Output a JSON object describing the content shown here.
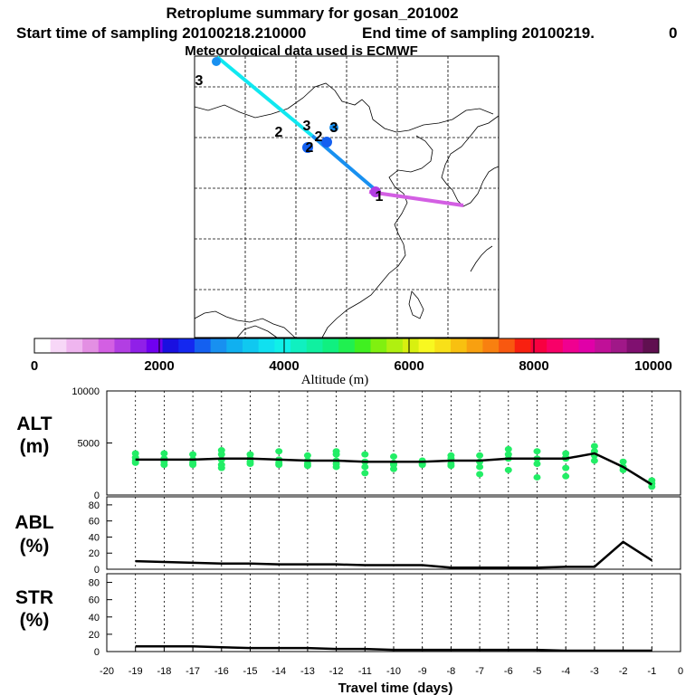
{
  "header": {
    "title": "Retroplume summary for gosan_201002",
    "start": "Start time of sampling 20100218.210000",
    "end": "End time of sampling 20100219.",
    "end_suffix": "0",
    "met": "Meteorological data used is ECMWF"
  },
  "colorbar": {
    "title": "Altitude (m)",
    "ticks": [
      "0",
      "2000",
      "4000",
      "6000",
      "8000",
      "10000"
    ],
    "colors": [
      "#ffffff",
      "#f7d7f7",
      "#efb5ef",
      "#e38fe3",
      "#d35fe3",
      "#b23ee3",
      "#9020e8",
      "#7000f0",
      "#1a10e0",
      "#1428f0",
      "#1460f0",
      "#1890f0",
      "#10b0f0",
      "#10c8f0",
      "#10e0f0",
      "#10f0e8",
      "#10f0c0",
      "#10f0a0",
      "#10f080",
      "#20f050",
      "#40f020",
      "#80f010",
      "#b0f010",
      "#d8f010",
      "#f8f820",
      "#f8e018",
      "#f8c010",
      "#f8a010",
      "#f88010",
      "#f85810",
      "#f82010",
      "#f80040",
      "#f80068",
      "#f00090",
      "#e000a8",
      "#c01098",
      "#a01888",
      "#801070",
      "#601050"
    ]
  },
  "map": {
    "markers": [
      "1",
      "2",
      "2",
      "2",
      "3",
      "3",
      "3"
    ]
  },
  "chart_data": [
    {
      "type": "line",
      "panel": "ALT",
      "label_top": "ALT",
      "label_bottom": "(m)",
      "ylim": [
        0,
        10000
      ],
      "yticks": [
        "10000",
        "5000",
        "0"
      ],
      "x": [
        -19,
        -18,
        -17,
        -16,
        -15,
        -14,
        -13,
        -12,
        -11,
        -10,
        -9,
        -8,
        -7,
        -6,
        -5,
        -4,
        -3,
        -2,
        -1
      ],
      "series": [
        {
          "name": "median",
          "values": [
            3400,
            3400,
            3400,
            3500,
            3500,
            3400,
            3300,
            3300,
            3200,
            3200,
            3200,
            3300,
            3300,
            3500,
            3500,
            3500,
            4000,
            2700,
            1000
          ]
        }
      ],
      "scatter": {
        "color": "#22ee66",
        "points": [
          [
            -19,
            3100
          ],
          [
            -19,
            3600
          ],
          [
            -19,
            4000
          ],
          [
            -19,
            3300
          ],
          [
            -18,
            2900
          ],
          [
            -18,
            3500
          ],
          [
            -18,
            4000
          ],
          [
            -18,
            3200
          ],
          [
            -17,
            2900
          ],
          [
            -17,
            3400
          ],
          [
            -17,
            3900
          ],
          [
            -17,
            3100
          ],
          [
            -16,
            2900
          ],
          [
            -16,
            3400
          ],
          [
            -16,
            3900
          ],
          [
            -16,
            4300
          ],
          [
            -16,
            2600
          ],
          [
            -15,
            3000
          ],
          [
            -15,
            3500
          ],
          [
            -15,
            3900
          ],
          [
            -15,
            3200
          ],
          [
            -14,
            2900
          ],
          [
            -14,
            3400
          ],
          [
            -14,
            4200
          ],
          [
            -14,
            3100
          ],
          [
            -13,
            2800
          ],
          [
            -13,
            3300
          ],
          [
            -13,
            3800
          ],
          [
            -13,
            3000
          ],
          [
            -12,
            2700
          ],
          [
            -12,
            3300
          ],
          [
            -12,
            3900
          ],
          [
            -12,
            3000
          ],
          [
            -12,
            4200
          ],
          [
            -11,
            2700
          ],
          [
            -11,
            3200
          ],
          [
            -11,
            3900
          ],
          [
            -11,
            2100
          ],
          [
            -10,
            2500
          ],
          [
            -10,
            3100
          ],
          [
            -10,
            3700
          ],
          [
            -10,
            2900
          ],
          [
            -9,
            2900
          ],
          [
            -9,
            3300
          ],
          [
            -9,
            3000
          ],
          [
            -8,
            3000
          ],
          [
            -8,
            3500
          ],
          [
            -8,
            2800
          ],
          [
            -8,
            3800
          ],
          [
            -7,
            2700
          ],
          [
            -7,
            3200
          ],
          [
            -7,
            3800
          ],
          [
            -7,
            2000
          ],
          [
            -6,
            3900
          ],
          [
            -6,
            4400
          ],
          [
            -6,
            3500
          ],
          [
            -6,
            2400
          ],
          [
            -5,
            3000
          ],
          [
            -5,
            3500
          ],
          [
            -5,
            4200
          ],
          [
            -5,
            1700
          ],
          [
            -4,
            3500
          ],
          [
            -4,
            4000
          ],
          [
            -4,
            3600
          ],
          [
            -4,
            1800
          ],
          [
            -4,
            2600
          ],
          [
            -3,
            4200
          ],
          [
            -3,
            4700
          ],
          [
            -3,
            3800
          ],
          [
            -3,
            3300
          ],
          [
            -2,
            2700
          ],
          [
            -2,
            3200
          ],
          [
            -2,
            2400
          ],
          [
            -1,
            800
          ],
          [
            -1,
            1100
          ],
          [
            -1,
            1400
          ]
        ]
      }
    },
    {
      "type": "line",
      "panel": "ABL",
      "label_top": "ABL",
      "label_bottom": "(%)",
      "ylim": [
        0,
        90
      ],
      "yticks": [
        "80",
        "60",
        "40",
        "20",
        "0"
      ],
      "x": [
        -19,
        -18,
        -17,
        -16,
        -15,
        -14,
        -13,
        -12,
        -11,
        -10,
        -9,
        -8,
        -7,
        -6,
        -5,
        -4,
        -3,
        -2,
        -1
      ],
      "series": [
        {
          "name": "ABL",
          "values": [
            10,
            9,
            8,
            7,
            7,
            6,
            6,
            6,
            5,
            5,
            5,
            2,
            2,
            2,
            2,
            3,
            3,
            34,
            11
          ]
        }
      ]
    },
    {
      "type": "line",
      "panel": "STR",
      "label_top": "STR",
      "label_bottom": "(%)",
      "ylim": [
        0,
        90
      ],
      "yticks": [
        "80",
        "60",
        "40",
        "20",
        "0"
      ],
      "xlabel": "Travel time (days)",
      "xticks": [
        "-20",
        "-19",
        "-18",
        "-17",
        "-16",
        "-15",
        "-14",
        "-13",
        "-12",
        "-11",
        "-10",
        "-9",
        "-8",
        "-7",
        "-6",
        "-5",
        "-4",
        "-3",
        "-2",
        "-1",
        "0"
      ],
      "x": [
        -19,
        -18,
        -17,
        -16,
        -15,
        -14,
        -13,
        -12,
        -11,
        -10,
        -9,
        -8,
        -7,
        -6,
        -5,
        -4,
        -3,
        -2,
        -1
      ],
      "series": [
        {
          "name": "STR",
          "values": [
            6,
            6,
            6,
            5,
            4,
            4,
            4,
            3,
            3,
            2,
            2,
            2,
            2,
            2,
            2,
            1,
            1,
            1,
            1
          ]
        }
      ]
    }
  ]
}
